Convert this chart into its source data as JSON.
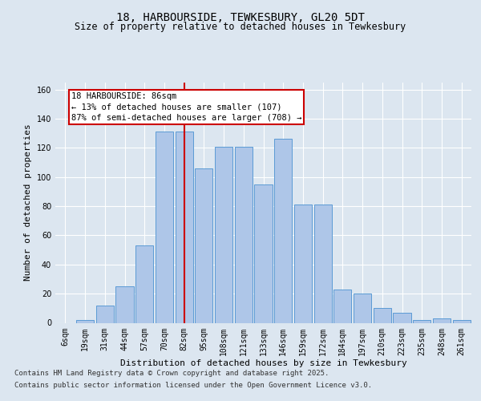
{
  "title_line1": "18, HARBOURSIDE, TEWKESBURY, GL20 5DT",
  "title_line2": "Size of property relative to detached houses in Tewkesbury",
  "xlabel": "Distribution of detached houses by size in Tewkesbury",
  "ylabel": "Number of detached properties",
  "categories": [
    "6sqm",
    "19sqm",
    "31sqm",
    "44sqm",
    "57sqm",
    "70sqm",
    "82sqm",
    "95sqm",
    "108sqm",
    "121sqm",
    "133sqm",
    "146sqm",
    "159sqm",
    "172sqm",
    "184sqm",
    "197sqm",
    "210sqm",
    "223sqm",
    "235sqm",
    "248sqm",
    "261sqm"
  ],
  "bar_values": [
    0,
    2,
    12,
    25,
    53,
    131,
    131,
    106,
    121,
    121,
    95,
    126,
    81,
    81,
    23,
    20,
    10,
    7,
    2,
    3,
    2
  ],
  "bar_color": "#aec6e8",
  "bar_edge_color": "#5b9bd5",
  "vline_color": "#cc0000",
  "vline_index": 6,
  "annotation_text": "18 HARBOURSIDE: 86sqm\n← 13% of detached houses are smaller (107)\n87% of semi-detached houses are larger (708) →",
  "annotation_box_edge": "#cc0000",
  "annotation_fontsize": 7.5,
  "ylim": [
    0,
    165
  ],
  "yticks": [
    0,
    20,
    40,
    60,
    80,
    100,
    120,
    140,
    160
  ],
  "background_color": "#dce6f0",
  "plot_background": "#dce6f0",
  "grid_color": "#ffffff",
  "footer_line1": "Contains HM Land Registry data © Crown copyright and database right 2025.",
  "footer_line2": "Contains public sector information licensed under the Open Government Licence v3.0.",
  "title_fontsize": 10,
  "subtitle_fontsize": 8.5,
  "xlabel_fontsize": 8,
  "ylabel_fontsize": 8,
  "tick_fontsize": 7,
  "footer_fontsize": 6.5
}
